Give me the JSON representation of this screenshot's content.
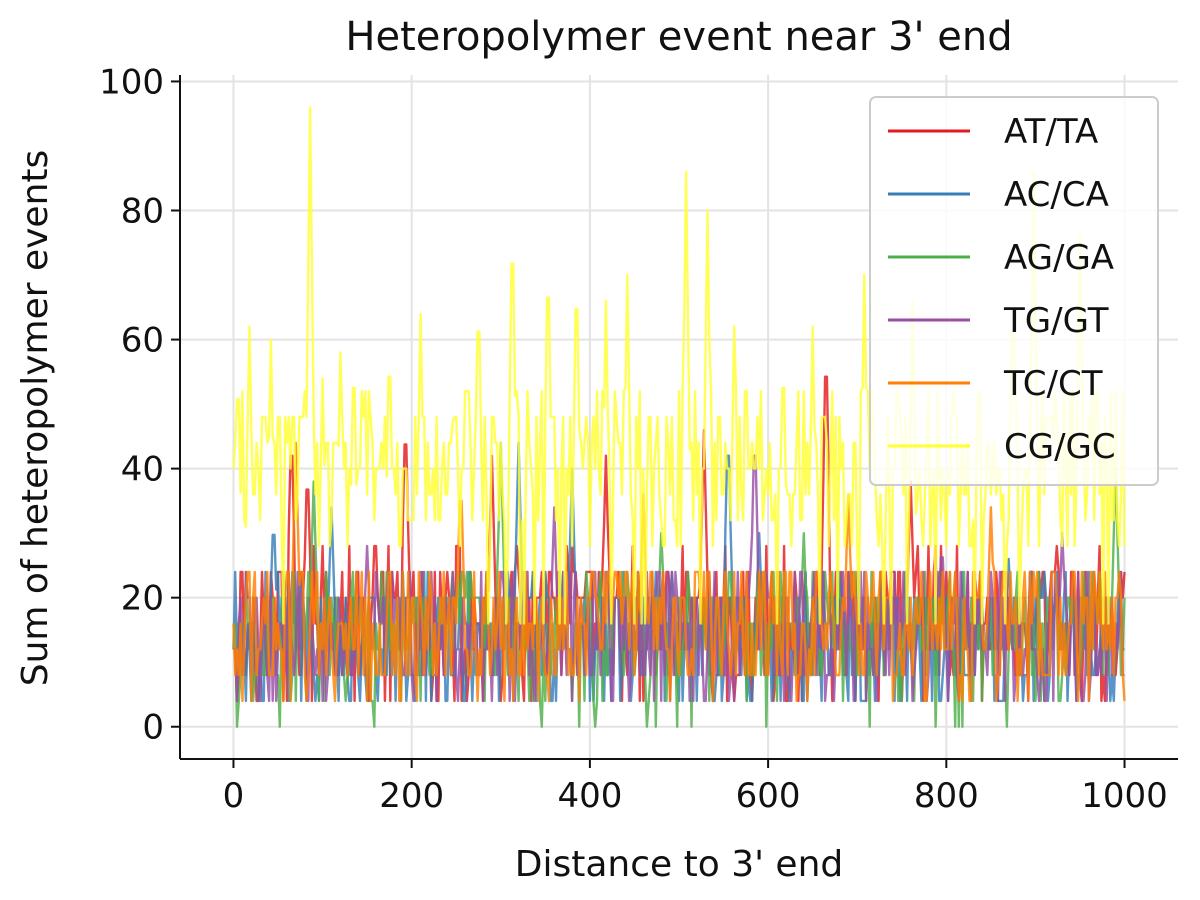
{
  "chart_data": {
    "type": "line",
    "title": "Heteropolymer event near 3' end",
    "xlabel": "Distance to 3' end",
    "ylabel": "Sum of heteropolymer events",
    "xlim": [
      -60,
      1060
    ],
    "ylim": [
      -5,
      101
    ],
    "xticks": [
      0,
      200,
      400,
      600,
      800,
      1000
    ],
    "yticks": [
      0,
      20,
      40,
      60,
      80,
      100
    ],
    "grid": true,
    "legend_position": "top-right",
    "x_range": [
      0,
      1000
    ],
    "x_step": 2,
    "series": [
      {
        "name": "AT/TA",
        "color": "#e41a1c",
        "baseline": 16,
        "spread": 11,
        "floor": 4,
        "peaks": [
          [
            65,
            48
          ],
          [
            83,
            42
          ],
          [
            193,
            50
          ],
          [
            290,
            42
          ],
          [
            418,
            42
          ],
          [
            528,
            46
          ],
          [
            665,
            62
          ],
          [
            760,
            38
          ]
        ]
      },
      {
        "name": "AC/CA",
        "color": "#377eb8",
        "baseline": 14,
        "spread": 10,
        "floor": 4,
        "peaks": [
          [
            45,
            34
          ],
          [
            110,
            34
          ],
          [
            320,
            44
          ],
          [
            380,
            40
          ],
          [
            555,
            48
          ],
          [
            590,
            30
          ],
          [
            870,
            26
          ]
        ]
      },
      {
        "name": "AG/GA",
        "color": "#4daf4a",
        "baseline": 14,
        "spread": 10,
        "floor": 0,
        "peaks": [
          [
            90,
            38
          ],
          [
            300,
            44
          ],
          [
            480,
            30
          ],
          [
            640,
            30
          ],
          [
            990,
            40
          ]
        ]
      },
      {
        "name": "TG/GT",
        "color": "#984ea3",
        "baseline": 15,
        "spread": 10,
        "floor": 4,
        "peaks": [
          [
            150,
            28
          ],
          [
            360,
            34
          ],
          [
            585,
            48
          ],
          [
            795,
            30
          ],
          [
            930,
            30
          ]
        ]
      },
      {
        "name": "TC/CT",
        "color": "#ff7f00",
        "baseline": 16,
        "spread": 10,
        "floor": 4,
        "peaks": [
          [
            70,
            44
          ],
          [
            255,
            40
          ],
          [
            460,
            36
          ],
          [
            690,
            36
          ],
          [
            850,
            34
          ]
        ]
      },
      {
        "name": "CG/GC",
        "color": "#ffff33",
        "baseline": 40,
        "spread": 13,
        "floor": 16,
        "peaks": [
          [
            5,
            58
          ],
          [
            18,
            62
          ],
          [
            42,
            60
          ],
          [
            86,
            96
          ],
          [
            100,
            54
          ],
          [
            120,
            58
          ],
          [
            135,
            60
          ],
          [
            175,
            62
          ],
          [
            210,
            64
          ],
          [
            247,
            54
          ],
          [
            275,
            70
          ],
          [
            313,
            82
          ],
          [
            353,
            76
          ],
          [
            385,
            74
          ],
          [
            418,
            66
          ],
          [
            442,
            70
          ],
          [
            508,
            86
          ],
          [
            532,
            80
          ],
          [
            562,
            62
          ],
          [
            617,
            60
          ],
          [
            650,
            62
          ],
          [
            708,
            70
          ],
          [
            762,
            66
          ],
          [
            875,
            70
          ],
          [
            898,
            86
          ],
          [
            950,
            76
          ]
        ]
      }
    ]
  }
}
